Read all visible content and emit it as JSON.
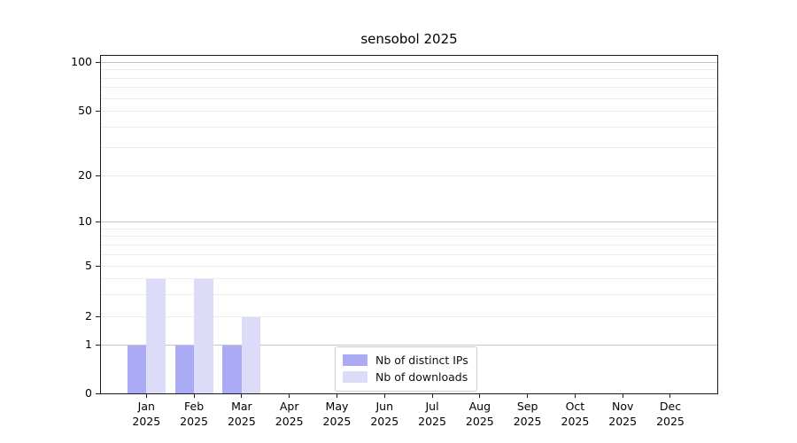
{
  "chart_data": {
    "type": "bar",
    "title": "sensobol 2025",
    "categories": [
      {
        "month": "Jan",
        "year": "2025"
      },
      {
        "month": "Feb",
        "year": "2025"
      },
      {
        "month": "Mar",
        "year": "2025"
      },
      {
        "month": "Apr",
        "year": "2025"
      },
      {
        "month": "May",
        "year": "2025"
      },
      {
        "month": "Jun",
        "year": "2025"
      },
      {
        "month": "Jul",
        "year": "2025"
      },
      {
        "month": "Aug",
        "year": "2025"
      },
      {
        "month": "Sep",
        "year": "2025"
      },
      {
        "month": "Oct",
        "year": "2025"
      },
      {
        "month": "Nov",
        "year": "2025"
      },
      {
        "month": "Dec",
        "year": "2025"
      }
    ],
    "series": [
      {
        "name": "Nb of distinct IPs",
        "color": "#ababf5",
        "values": [
          1,
          1,
          1,
          0,
          0,
          0,
          0,
          0,
          0,
          0,
          0,
          0
        ]
      },
      {
        "name": "Nb of downloads",
        "color": "#dcdcf8",
        "values": [
          4,
          4,
          2,
          0,
          0,
          0,
          0,
          0,
          0,
          0,
          0,
          0
        ]
      }
    ],
    "yaxis": {
      "scale": "symlog",
      "tick_labels": [
        "0",
        "1",
        "2",
        "5",
        "10",
        "20",
        "50",
        "100"
      ],
      "tick_values": [
        0,
        1,
        2,
        5,
        10,
        20,
        50,
        100
      ],
      "major_grid_values": [
        1,
        10,
        100
      ],
      "minor_grid_values": [
        2,
        3,
        4,
        5,
        6,
        7,
        8,
        9,
        20,
        30,
        40,
        50,
        60,
        70,
        80,
        90
      ],
      "ylim": [
        0,
        112
      ]
    },
    "xlabel": "",
    "ylabel": "",
    "grid": true,
    "legend_position": "lower center",
    "colors": {
      "major_grid": "#c6c6c6",
      "minor_grid": "#ededed",
      "axis": "#1a1a1a",
      "text": "#000000"
    }
  }
}
